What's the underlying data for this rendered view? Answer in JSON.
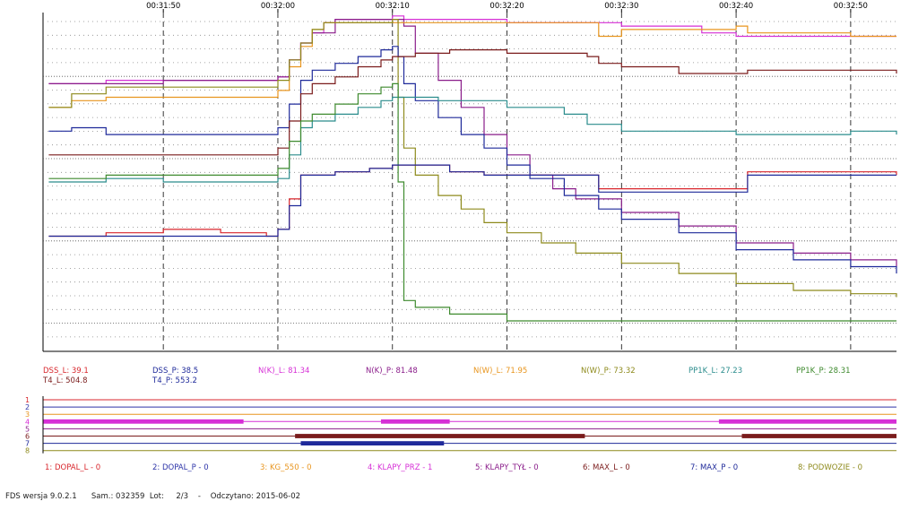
{
  "colors": {
    "DSS_L": "#d8262c",
    "T4_L": "#7a1b1b",
    "DSS_P": "#1f2a9a",
    "T4_P": "#1f2a9a",
    "NK_L": "#d62fd6",
    "NK_P": "#8a1d8a",
    "NW_L": "#e8951e",
    "NW_P": "#8e8a1c",
    "PP1K_L": "#2a8c8c",
    "PP1K_P": "#3e8a2e",
    "DISC_1": "#d8262c",
    "DISC_2": "#2d34a8",
    "DISC_3": "#e8951e",
    "DISC_4": "#d62fd6",
    "DISC_5": "#8a1d8a",
    "DISC_6": "#7a1b1b",
    "DISC_7": "#1f2a9a",
    "DISC_8": "#8e8a1c"
  },
  "chart_data": {
    "type": "line",
    "x_axis": {
      "ticks": [
        "00:31:50",
        "00:32:00",
        "00:32:10",
        "00:32:20",
        "00:32:30",
        "00:32:40",
        "00:32:50"
      ],
      "range": [
        -10.5,
        64.0
      ],
      "tick_values": [
        0,
        10,
        20,
        30,
        40,
        50,
        60
      ]
    },
    "y_axis": {
      "range": [
        0,
        1
      ],
      "grid": true
    },
    "series": [
      {
        "name": "N(K)_L",
        "color_key": "NK_L",
        "points": [
          [
            -10,
            0.79
          ],
          [
            -5,
            0.8
          ],
          [
            0,
            0.8
          ],
          [
            9,
            0.8
          ],
          [
            10,
            0.81
          ],
          [
            11,
            0.86
          ],
          [
            12,
            0.91
          ],
          [
            13,
            0.94
          ],
          [
            14,
            0.97
          ],
          [
            15,
            0.98
          ],
          [
            20,
            0.99
          ],
          [
            21,
            0.98
          ],
          [
            30,
            0.97
          ],
          [
            40,
            0.96
          ],
          [
            47,
            0.94
          ],
          [
            50,
            0.93
          ],
          [
            60,
            0.93
          ],
          [
            64,
            0.93
          ]
        ]
      },
      {
        "name": "N(K)_P",
        "color_key": "NK_P",
        "points": [
          [
            -10,
            0.79
          ],
          [
            0,
            0.8
          ],
          [
            9,
            0.8
          ],
          [
            10,
            0.81
          ],
          [
            11,
            0.86
          ],
          [
            12,
            0.91
          ],
          [
            13,
            0.94
          ],
          [
            15,
            0.98
          ],
          [
            20,
            0.98
          ],
          [
            21,
            0.96
          ],
          [
            22,
            0.88
          ],
          [
            24,
            0.8
          ],
          [
            26,
            0.72
          ],
          [
            28,
            0.64
          ],
          [
            30,
            0.58
          ],
          [
            32,
            0.52
          ],
          [
            34,
            0.48
          ],
          [
            36,
            0.45
          ],
          [
            40,
            0.41
          ],
          [
            45,
            0.37
          ],
          [
            50,
            0.32
          ],
          [
            55,
            0.29
          ],
          [
            60,
            0.27
          ],
          [
            64,
            0.25
          ]
        ]
      },
      {
        "name": "N(W)_L",
        "color_key": "NW_L",
        "points": [
          [
            -10,
            0.72
          ],
          [
            -8,
            0.74
          ],
          [
            -5,
            0.75
          ],
          [
            0,
            0.75
          ],
          [
            9,
            0.75
          ],
          [
            10,
            0.77
          ],
          [
            11,
            0.84
          ],
          [
            12,
            0.9
          ],
          [
            13,
            0.95
          ],
          [
            14,
            0.97
          ],
          [
            20,
            0.97
          ],
          [
            21,
            0.97
          ],
          [
            30,
            0.97
          ],
          [
            37,
            0.97
          ],
          [
            38,
            0.93
          ],
          [
            40,
            0.95
          ],
          [
            45,
            0.95
          ],
          [
            50,
            0.96
          ],
          [
            51,
            0.94
          ],
          [
            60,
            0.93
          ],
          [
            64,
            0.93
          ]
        ]
      },
      {
        "name": "N(W)_P",
        "color_key": "NW_P",
        "points": [
          [
            -10,
            0.72
          ],
          [
            -8,
            0.76
          ],
          [
            -5,
            0.78
          ],
          [
            0,
            0.78
          ],
          [
            9,
            0.78
          ],
          [
            10,
            0.8
          ],
          [
            11,
            0.86
          ],
          [
            12,
            0.91
          ],
          [
            13,
            0.95
          ],
          [
            14,
            0.97
          ],
          [
            20,
            0.98
          ],
          [
            20.5,
            0.75
          ],
          [
            21,
            0.6
          ],
          [
            22,
            0.52
          ],
          [
            24,
            0.46
          ],
          [
            26,
            0.42
          ],
          [
            28,
            0.38
          ],
          [
            30,
            0.35
          ],
          [
            33,
            0.32
          ],
          [
            36,
            0.29
          ],
          [
            40,
            0.26
          ],
          [
            45,
            0.23
          ],
          [
            50,
            0.2
          ],
          [
            55,
            0.18
          ],
          [
            60,
            0.17
          ],
          [
            64,
            0.16
          ]
        ]
      },
      {
        "name": "T4_P",
        "color_key": "T4_P",
        "points": [
          [
            -10,
            0.65
          ],
          [
            -8,
            0.66
          ],
          [
            -5,
            0.64
          ],
          [
            0,
            0.64
          ],
          [
            9,
            0.64
          ],
          [
            10,
            0.66
          ],
          [
            11,
            0.73
          ],
          [
            12,
            0.8
          ],
          [
            13,
            0.83
          ],
          [
            15,
            0.85
          ],
          [
            17,
            0.87
          ],
          [
            19,
            0.89
          ],
          [
            20,
            0.9
          ],
          [
            20.5,
            0.87
          ],
          [
            21,
            0.79
          ],
          [
            22,
            0.74
          ],
          [
            24,
            0.69
          ],
          [
            26,
            0.64
          ],
          [
            28,
            0.6
          ],
          [
            30,
            0.55
          ],
          [
            32,
            0.51
          ],
          [
            35,
            0.46
          ],
          [
            38,
            0.42
          ],
          [
            40,
            0.39
          ],
          [
            45,
            0.35
          ],
          [
            50,
            0.3
          ],
          [
            55,
            0.27
          ],
          [
            60,
            0.25
          ],
          [
            64,
            0.23
          ]
        ]
      },
      {
        "name": "T4_L",
        "color_key": "T4_L",
        "points": [
          [
            -10,
            0.58
          ],
          [
            -5,
            0.58
          ],
          [
            0,
            0.58
          ],
          [
            9,
            0.58
          ],
          [
            10,
            0.6
          ],
          [
            11,
            0.68
          ],
          [
            12,
            0.76
          ],
          [
            13,
            0.79
          ],
          [
            15,
            0.81
          ],
          [
            17,
            0.84
          ],
          [
            19,
            0.86
          ],
          [
            20,
            0.87
          ],
          [
            22,
            0.88
          ],
          [
            25,
            0.89
          ],
          [
            30,
            0.88
          ],
          [
            35,
            0.88
          ],
          [
            37,
            0.87
          ],
          [
            38,
            0.85
          ],
          [
            40,
            0.84
          ],
          [
            45,
            0.82
          ],
          [
            50,
            0.82
          ],
          [
            51,
            0.83
          ],
          [
            60,
            0.83
          ],
          [
            64,
            0.82
          ]
        ]
      },
      {
        "name": "PP1K_L",
        "color_key": "PP1K_L",
        "points": [
          [
            -10,
            0.5
          ],
          [
            -5,
            0.51
          ],
          [
            0,
            0.5
          ],
          [
            9,
            0.5
          ],
          [
            10,
            0.51
          ],
          [
            11,
            0.58
          ],
          [
            12,
            0.66
          ],
          [
            13,
            0.68
          ],
          [
            15,
            0.7
          ],
          [
            17,
            0.72
          ],
          [
            19,
            0.74
          ],
          [
            20,
            0.75
          ],
          [
            22,
            0.75
          ],
          [
            24,
            0.74
          ],
          [
            26,
            0.74
          ],
          [
            30,
            0.72
          ],
          [
            35,
            0.7
          ],
          [
            37,
            0.67
          ],
          [
            40,
            0.65
          ],
          [
            45,
            0.65
          ],
          [
            50,
            0.64
          ],
          [
            55,
            0.64
          ],
          [
            60,
            0.65
          ],
          [
            64,
            0.64
          ]
        ]
      },
      {
        "name": "PP1K_P",
        "color_key": "PP1K_P",
        "points": [
          [
            -10,
            0.51
          ],
          [
            -5,
            0.52
          ],
          [
            0,
            0.52
          ],
          [
            9,
            0.52
          ],
          [
            10,
            0.54
          ],
          [
            11,
            0.62
          ],
          [
            12,
            0.68
          ],
          [
            13,
            0.7
          ],
          [
            15,
            0.73
          ],
          [
            17,
            0.76
          ],
          [
            19,
            0.78
          ],
          [
            20,
            0.79
          ],
          [
            20.5,
            0.5
          ],
          [
            21,
            0.15
          ],
          [
            22,
            0.13
          ],
          [
            25,
            0.11
          ],
          [
            30,
            0.09
          ],
          [
            35,
            0.09
          ],
          [
            40,
            0.09
          ],
          [
            45,
            0.09
          ],
          [
            50,
            0.09
          ],
          [
            55,
            0.09
          ],
          [
            60,
            0.09
          ],
          [
            64,
            0.09
          ]
        ]
      },
      {
        "name": "DSS_L",
        "color_key": "DSS_L",
        "points": [
          [
            -10,
            0.34
          ],
          [
            -5,
            0.35
          ],
          [
            0,
            0.36
          ],
          [
            5,
            0.35
          ],
          [
            9,
            0.34
          ],
          [
            10,
            0.36
          ],
          [
            11,
            0.45
          ],
          [
            12,
            0.52
          ],
          [
            13,
            0.52
          ],
          [
            15,
            0.53
          ],
          [
            18,
            0.54
          ],
          [
            20,
            0.55
          ],
          [
            22,
            0.55
          ],
          [
            25,
            0.53
          ],
          [
            28,
            0.52
          ],
          [
            33,
            0.52
          ],
          [
            37,
            0.52
          ],
          [
            38,
            0.48
          ],
          [
            40,
            0.48
          ],
          [
            45,
            0.48
          ],
          [
            50,
            0.48
          ],
          [
            51,
            0.53
          ],
          [
            60,
            0.53
          ],
          [
            64,
            0.52
          ]
        ]
      },
      {
        "name": "DSS_P",
        "color_key": "DSS_P",
        "points": [
          [
            -10,
            0.34
          ],
          [
            -5,
            0.34
          ],
          [
            0,
            0.34
          ],
          [
            5,
            0.34
          ],
          [
            9,
            0.34
          ],
          [
            10,
            0.36
          ],
          [
            11,
            0.43
          ],
          [
            12,
            0.52
          ],
          [
            13,
            0.52
          ],
          [
            15,
            0.53
          ],
          [
            18,
            0.54
          ],
          [
            20,
            0.55
          ],
          [
            22,
            0.55
          ],
          [
            25,
            0.53
          ],
          [
            28,
            0.52
          ],
          [
            33,
            0.52
          ],
          [
            37,
            0.52
          ],
          [
            38,
            0.47
          ],
          [
            40,
            0.47
          ],
          [
            45,
            0.47
          ],
          [
            50,
            0.47
          ],
          [
            51,
            0.52
          ],
          [
            60,
            0.52
          ],
          [
            64,
            0.52
          ]
        ]
      }
    ],
    "discrete": [
      {
        "n": "1",
        "color_key": "DISC_1",
        "segments": []
      },
      {
        "n": "2",
        "color_key": "DISC_2",
        "segments": []
      },
      {
        "n": "3",
        "color_key": "DISC_3",
        "segments": []
      },
      {
        "n": "4",
        "color_key": "DISC_4",
        "segments": [
          [
            -10.5,
            7.0
          ],
          [
            19.0,
            25.0
          ],
          [
            48.5,
            64.0
          ]
        ]
      },
      {
        "n": "5",
        "color_key": "DISC_5",
        "segments": []
      },
      {
        "n": "6",
        "color_key": "DISC_6",
        "segments": [
          [
            11.5,
            36.8
          ],
          [
            50.5,
            64.0
          ]
        ]
      },
      {
        "n": "7",
        "color_key": "DISC_7",
        "segments": [
          [
            12.0,
            24.5
          ]
        ]
      },
      {
        "n": "8",
        "color_key": "DISC_8",
        "segments": []
      }
    ]
  },
  "readouts": [
    {
      "label": "DSS_L: 39.1",
      "color_key": "DSS_L"
    },
    {
      "label": "T4_L: 504.8",
      "color_key": "T4_L"
    },
    {
      "label": "DSS_P: 38.5",
      "color_key": "DSS_P"
    },
    {
      "label": "T4_P: 553.2",
      "color_key": "T4_P"
    },
    {
      "label": "N(K)_L: 81.34",
      "color_key": "NK_L"
    },
    {
      "label": "N(K)_P: 81.48",
      "color_key": "NK_P"
    },
    {
      "label": "N(W)_L: 71.95",
      "color_key": "NW_L"
    },
    {
      "label": "N(W)_P: 73.32",
      "color_key": "NW_P"
    },
    {
      "label": "PP1K_L: 27.23",
      "color_key": "PP1K_L"
    },
    {
      "label": "PP1K_P: 28.31",
      "color_key": "PP1K_P"
    }
  ],
  "discrete_labels": [
    {
      "label": "1: DOPAL_L - 0",
      "color_key": "DISC_1"
    },
    {
      "label": "2: DOPAL_P - 0",
      "color_key": "DISC_2"
    },
    {
      "label": "3: KG_550 - 0",
      "color_key": "DISC_3"
    },
    {
      "label": "4: KLAPY_PRZ - 1",
      "color_key": "DISC_4"
    },
    {
      "label": "5: KLAPY_TYŁ - 0",
      "color_key": "DISC_5"
    },
    {
      "label": "6: MAX_L - 0",
      "color_key": "DISC_6"
    },
    {
      "label": "7: MAX_P - 0",
      "color_key": "DISC_7"
    },
    {
      "label": "8: PODWOZIE - 0",
      "color_key": "DISC_8"
    }
  ],
  "status_bar": "FDS wersja 9.0.2.1      Sam.: 032359  Lot:     2/3    -    Odczytano: 2015-06-02"
}
